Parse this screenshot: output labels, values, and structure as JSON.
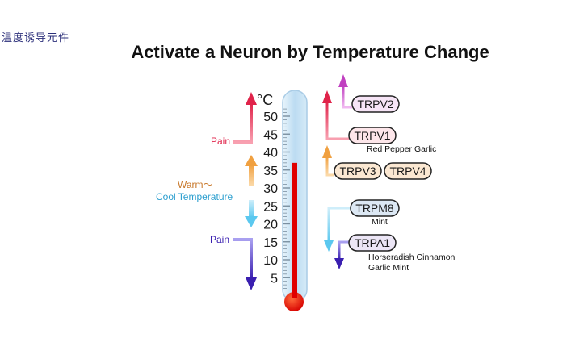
{
  "header": {
    "corner_text": "温度诱导元件",
    "title": "Activate a Neuron by Temperature Change"
  },
  "thermometer": {
    "unit": "°C",
    "ticks": [
      "50",
      "45",
      "40",
      "35",
      "30",
      "25",
      "20",
      "15",
      "10",
      "5"
    ],
    "level_celsius": 37,
    "colors": {
      "mercury": "#e00000",
      "tube": "#bcdcf2"
    }
  },
  "left_labels": {
    "pain_high": "Pain",
    "warm": "Warm～",
    "cool": "Cool Temperature",
    "pain_low": "Pain"
  },
  "channels": {
    "trpv2": "TRPV2",
    "trpv1": "TRPV1",
    "trpv1_note": "Red Pepper  Garlic",
    "trpv3": "TRPV3",
    "trpv4": "TRPV4",
    "trpm8": "TRPM8",
    "trpm8_note": "Mint",
    "trpa1": "TRPA1",
    "trpa1_note1": "Horseradish  Cinnamon",
    "trpa1_note2": "Garlic  Mint"
  },
  "colors": {
    "pain_high": "#e0234a",
    "warm": "#f0a040",
    "cool": "#5bc8ef",
    "pain_low": "#3a1fb0",
    "trpv2": "#c040c0",
    "cool_label_text": "#2c9fcf",
    "warm_label_text": "#c8782a"
  }
}
